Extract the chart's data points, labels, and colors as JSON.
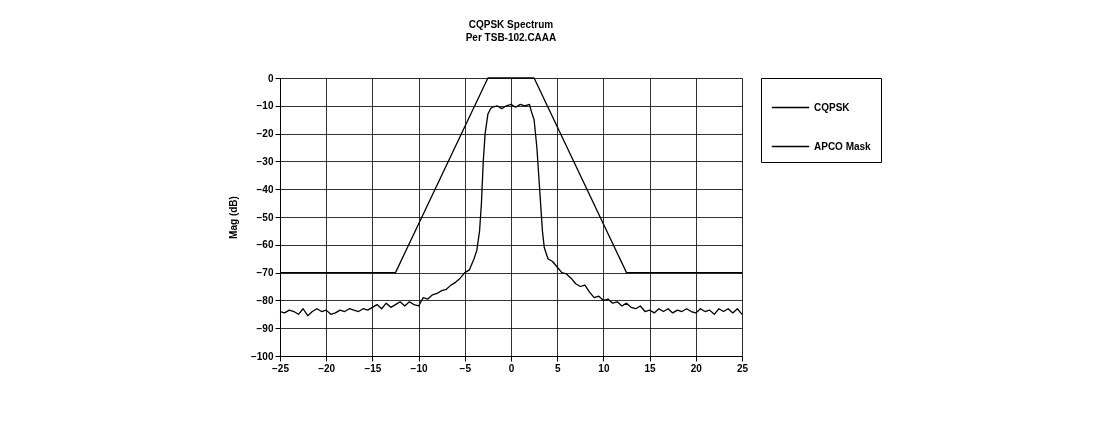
{
  "chart_data": {
    "type": "line",
    "title": "CQPSK Spectrum",
    "subtitle": "Per TSB-102.CAAA",
    "ylabel": "Mag (dB)",
    "xlim": [
      -25,
      25
    ],
    "xticks": [
      -25,
      -20,
      -15,
      -10,
      -5,
      0,
      5,
      10,
      15,
      20,
      25
    ],
    "ylim": [
      -100,
      0
    ],
    "yticks": [
      -100,
      -90,
      -80,
      -70,
      -60,
      -50,
      -40,
      -30,
      -20,
      -10,
      0
    ],
    "grid": true,
    "legend": "right",
    "line_style": "solid",
    "marker": "none",
    "series": [
      {
        "name": "CQPSK",
        "color": "#000000",
        "x": [
          -25,
          -24.5,
          -24,
          -23.5,
          -23,
          -22.5,
          -22,
          -21.5,
          -21,
          -20.5,
          -20,
          -19.5,
          -19,
          -18.5,
          -18,
          -17.5,
          -17,
          -16.5,
          -16,
          -15.5,
          -15,
          -14.5,
          -14,
          -13.5,
          -13,
          -12.5,
          -12,
          -11.5,
          -11,
          -10.5,
          -10,
          -9.5,
          -9,
          -8.5,
          -8,
          -7.5,
          -7,
          -6.5,
          -6,
          -5.5,
          -5,
          -4.5,
          -4,
          -3.7,
          -3.4,
          -3.2,
          -3.0,
          -2.8,
          -2.5,
          -2.2,
          -2,
          -1.5,
          -1,
          -0.5,
          0,
          0.5,
          1,
          1.5,
          2,
          2.2,
          2.5,
          2.8,
          3,
          3.2,
          3.4,
          3.6,
          4,
          4.5,
          5,
          5.5,
          6,
          6.5,
          7,
          7.5,
          8,
          8.5,
          9,
          9.5,
          10,
          10.5,
          11,
          11.5,
          12,
          12.5,
          13,
          13.5,
          14,
          14.5,
          15,
          15.5,
          16,
          16.5,
          17,
          17.5,
          18,
          18.5,
          19,
          19.5,
          20,
          20.5,
          21,
          21.5,
          22,
          22.5,
          23,
          23.5,
          24,
          24.5,
          25
        ],
        "values": [
          -84,
          -84.5,
          -83.5,
          -84,
          -85,
          -83,
          -85.5,
          -84,
          -83,
          -84,
          -83.5,
          -85,
          -84.5,
          -83.5,
          -84,
          -83,
          -83.5,
          -84,
          -83,
          -83.5,
          -82.5,
          -81.5,
          -83,
          -81,
          -82.5,
          -81.5,
          -80.5,
          -82,
          -80.5,
          -81.5,
          -82,
          -79,
          -79.5,
          -78,
          -77.5,
          -76.5,
          -76,
          -74.5,
          -73.5,
          -72,
          -70,
          -69,
          -65,
          -62,
          -55,
          -45,
          -30,
          -20,
          -13,
          -11,
          -10.5,
          -10,
          -11,
          -10,
          -9.5,
          -10.5,
          -9.5,
          -10,
          -9.5,
          -12,
          -15,
          -25,
          -35,
          -45,
          -55,
          -61,
          -65,
          -66,
          -68,
          -70,
          -70.5,
          -72,
          -74,
          -75,
          -74.5,
          -77,
          -79,
          -78.5,
          -80,
          -79.5,
          -81,
          -80.5,
          -82,
          -81,
          -82.5,
          -83,
          -82,
          -84,
          -83.5,
          -84.5,
          -83,
          -84,
          -83,
          -84.5,
          -83.5,
          -84,
          -83,
          -84,
          -84.5,
          -83,
          -84,
          -83.5,
          -85,
          -83,
          -84,
          -83,
          -84.5,
          -83,
          -85
        ]
      },
      {
        "name": "APCO Mask",
        "color": "#000000",
        "x": [
          -25,
          -12.5,
          -2.5,
          2.5,
          12.5,
          25
        ],
        "values": [
          -70,
          -70,
          0,
          0,
          -70,
          -70
        ]
      }
    ]
  }
}
